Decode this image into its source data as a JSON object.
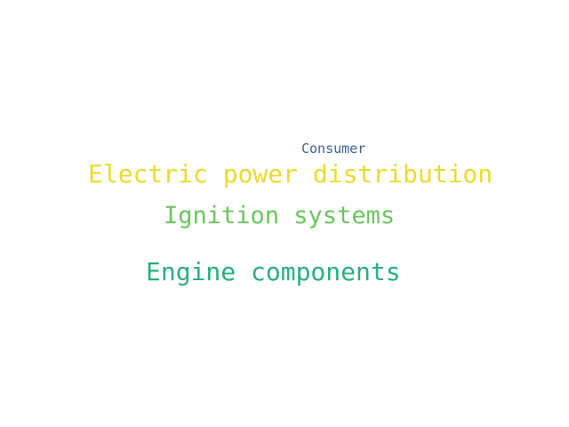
{
  "words": [
    {
      "text": "Consumer",
      "color": "#3f5f8f"
    },
    {
      "text": "Electric power distribution",
      "color": "#eadb2f"
    },
    {
      "text": "Ignition systems",
      "color": "#6cc45e"
    },
    {
      "text": "Engine components",
      "color": "#2aaf7f"
    }
  ]
}
